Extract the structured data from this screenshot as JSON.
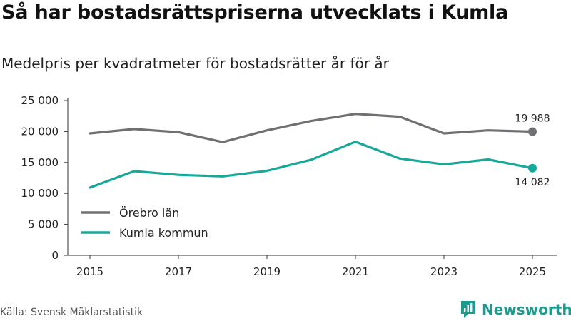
{
  "header": {
    "title": "Så har bostadsrättspriserna utvecklats i Kumla",
    "subtitle": "Medelpris per kvadratmeter för bostadsrätter år för år"
  },
  "footer": {
    "source": "Källa: Svensk Mäklarstatistik",
    "brand": "Newsworthy"
  },
  "colors": {
    "orebro": "#707074",
    "kumla": "#17a89a",
    "brand": "#1a9b8e"
  },
  "chart_data": {
    "type": "line",
    "title": "Så har bostadsrättspriserna utvecklats i Kumla",
    "subtitle": "Medelpris per kvadratmeter för bostadsrätter år för år",
    "xlabel": "",
    "ylabel": "",
    "x": [
      2015,
      2016,
      2017,
      2018,
      2019,
      2020,
      2021,
      2022,
      2023,
      2024,
      2025
    ],
    "x_ticks": [
      "2015",
      "2017",
      "2019",
      "2021",
      "2023",
      "2025"
    ],
    "y_ticks": [
      "0",
      "5 000",
      "10 000",
      "15 000",
      "20 000",
      "25 000"
    ],
    "ylim": [
      0,
      25000
    ],
    "grid": false,
    "legend_position": "bottom-left",
    "series": [
      {
        "name": "Örebro län",
        "color": "#707074",
        "values": [
          19700,
          20400,
          19900,
          18300,
          20200,
          21700,
          22850,
          22400,
          19700,
          20200,
          19988
        ],
        "end_label": "19 988"
      },
      {
        "name": "Kumla kommun",
        "color": "#17a89a",
        "values": [
          10950,
          13600,
          13000,
          12750,
          13650,
          15450,
          18350,
          15650,
          14700,
          15500,
          14082
        ],
        "end_label": "14 082"
      }
    ]
  }
}
